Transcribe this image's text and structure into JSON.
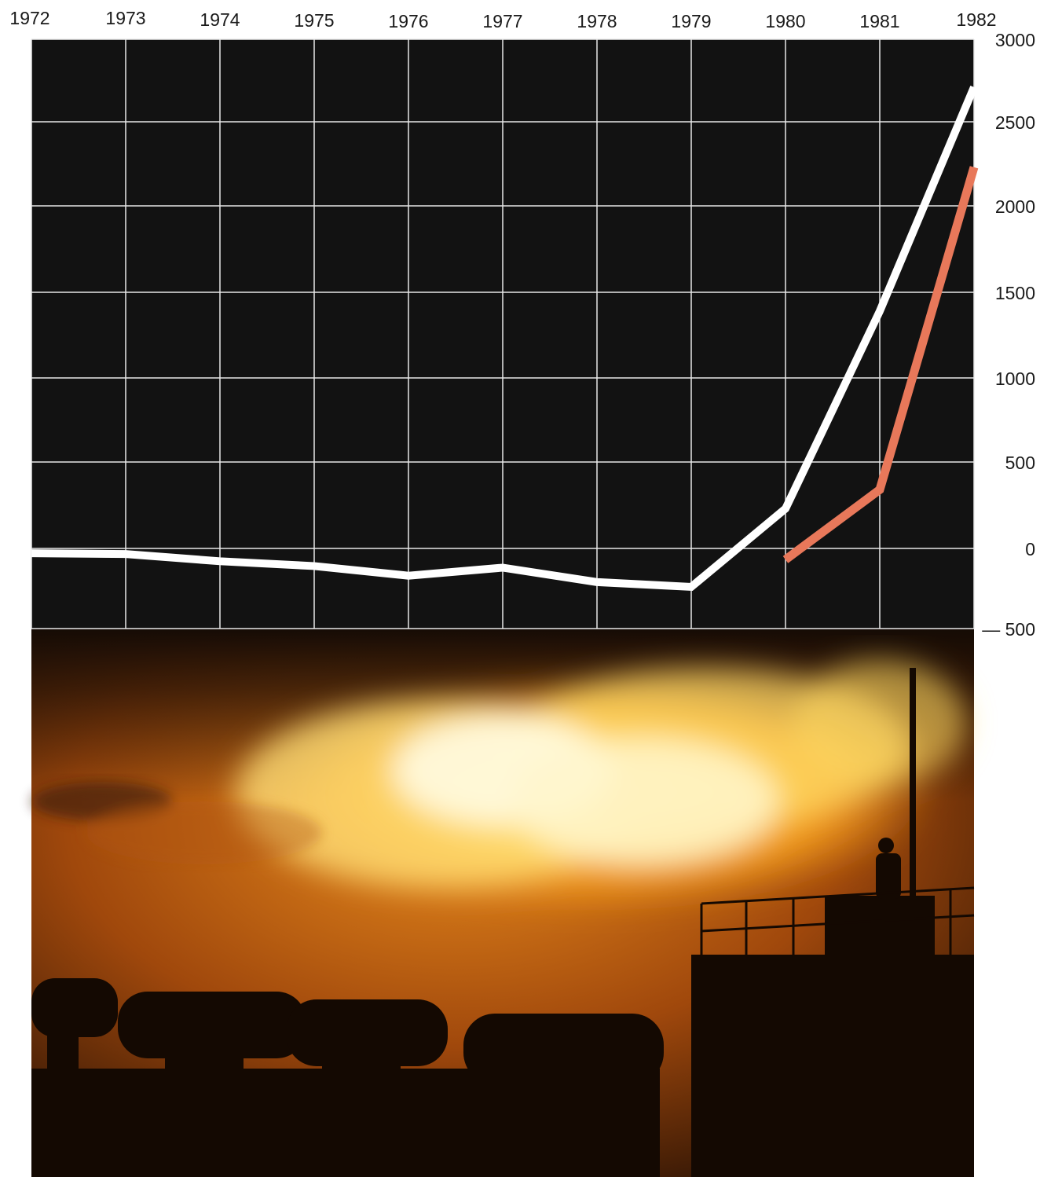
{
  "chart_data": {
    "type": "line",
    "title": "",
    "xlabel": "",
    "ylabel": "",
    "x": [
      "1972",
      "1973",
      "1974",
      "1975",
      "1976",
      "1977",
      "1978",
      "1979",
      "1980",
      "1981",
      "1982"
    ],
    "x_tick_labels": [
      "1972",
      "1973",
      "1974",
      "1975",
      "1976",
      "1977",
      "1978",
      "1979",
      "1980",
      "1981",
      "1982"
    ],
    "y_tick_values": [
      3000,
      2500,
      2000,
      1500,
      1000,
      500,
      0,
      -500
    ],
    "y_tick_labels": [
      "3000",
      "2500",
      "2000",
      "1500",
      "1000",
      "500",
      "0",
      "— 500"
    ],
    "ylim": [
      -500,
      3000
    ],
    "grid": true,
    "y_axis_side": "right",
    "x_axis_side": "top",
    "series": [
      {
        "name": "",
        "color": "#ffffff",
        "x": [
          1972,
          1973,
          1974,
          1975,
          1976,
          1977,
          1978,
          1979,
          1980,
          1981,
          1982
        ],
        "values": [
          -30,
          -35,
          -80,
          -110,
          -170,
          -120,
          -210,
          -240,
          230,
          1390,
          2710
        ]
      },
      {
        "name": "",
        "color": "#e8785a",
        "x": [
          1980,
          1981,
          1982
        ],
        "values": [
          -70,
          340,
          2230
        ]
      }
    ]
  },
  "photo": {
    "subject": "gas-flare-night-photo",
    "colors": {
      "flame_core": "#fff4b8",
      "flame_mid": "#ffd040",
      "glow": "#f08a18",
      "shadow": "#1a0d04"
    }
  }
}
